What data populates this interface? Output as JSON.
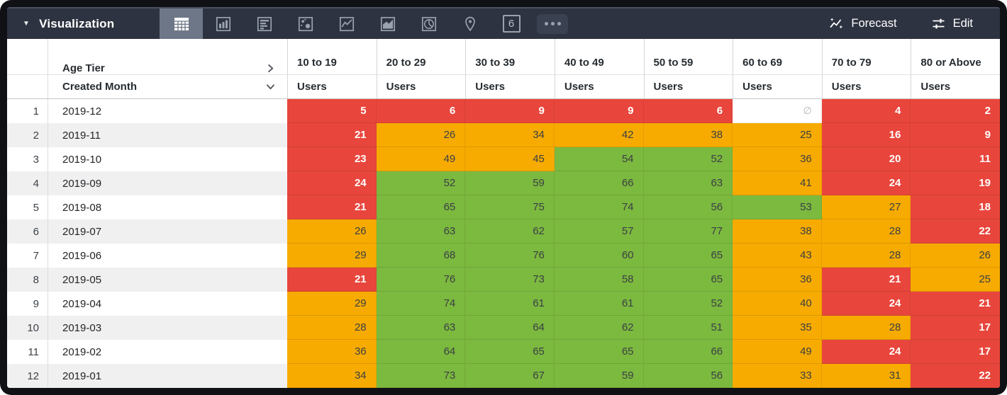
{
  "colors": {
    "topbar_bg": "#2d3340",
    "selected_vis_bg": "#6e7787",
    "icon_gray": "#9aa2ae",
    "red": "#e8463c",
    "orange": "#f7ab00",
    "green": "#7cb93f",
    "row_stripe": "#f0f0f0"
  },
  "toolbar": {
    "title": "Visualization",
    "forecast_label": "Forecast",
    "edit_label": "Edit",
    "single_value_label": "6",
    "vis_types": [
      "table",
      "column-chart",
      "bar-chart",
      "scatter",
      "line-chart",
      "area-chart",
      "pie-chart",
      "map",
      "single-value",
      "more"
    ],
    "selected_vis_type": "table"
  },
  "table": {
    "pivot_label": "Age Tier",
    "dimension_label": "Created Month",
    "measure_label": "Users",
    "null_symbol": "∅",
    "columns": [
      "10 to 19",
      "20 to 29",
      "30 to 39",
      "40 to 49",
      "50 to 59",
      "60 to 69",
      "70 to 79",
      "80 or Above"
    ],
    "color_rule": {
      "green_min": 50,
      "orange_min": 25
    },
    "rows": [
      {
        "index": 1,
        "month": "2019-12",
        "values": [
          5,
          6,
          9,
          9,
          6,
          null,
          4,
          2
        ]
      },
      {
        "index": 2,
        "month": "2019-11",
        "values": [
          21,
          26,
          34,
          42,
          38,
          25,
          16,
          9
        ]
      },
      {
        "index": 3,
        "month": "2019-10",
        "values": [
          23,
          49,
          45,
          54,
          52,
          36,
          20,
          11
        ]
      },
      {
        "index": 4,
        "month": "2019-09",
        "values": [
          24,
          52,
          59,
          66,
          63,
          41,
          24,
          19
        ]
      },
      {
        "index": 5,
        "month": "2019-08",
        "values": [
          21,
          65,
          75,
          74,
          56,
          53,
          27,
          18
        ]
      },
      {
        "index": 6,
        "month": "2019-07",
        "values": [
          26,
          63,
          62,
          57,
          77,
          38,
          28,
          22
        ]
      },
      {
        "index": 7,
        "month": "2019-06",
        "values": [
          29,
          68,
          76,
          60,
          65,
          43,
          28,
          26
        ]
      },
      {
        "index": 8,
        "month": "2019-05",
        "values": [
          21,
          76,
          73,
          58,
          65,
          36,
          21,
          25
        ]
      },
      {
        "index": 9,
        "month": "2019-04",
        "values": [
          29,
          74,
          61,
          61,
          52,
          40,
          24,
          21
        ]
      },
      {
        "index": 10,
        "month": "2019-03",
        "values": [
          28,
          63,
          64,
          62,
          51,
          35,
          28,
          17
        ]
      },
      {
        "index": 11,
        "month": "2019-02",
        "values": [
          36,
          64,
          65,
          65,
          66,
          49,
          24,
          17
        ]
      },
      {
        "index": 12,
        "month": "2019-01",
        "values": [
          34,
          73,
          67,
          59,
          56,
          33,
          31,
          22
        ]
      }
    ]
  }
}
